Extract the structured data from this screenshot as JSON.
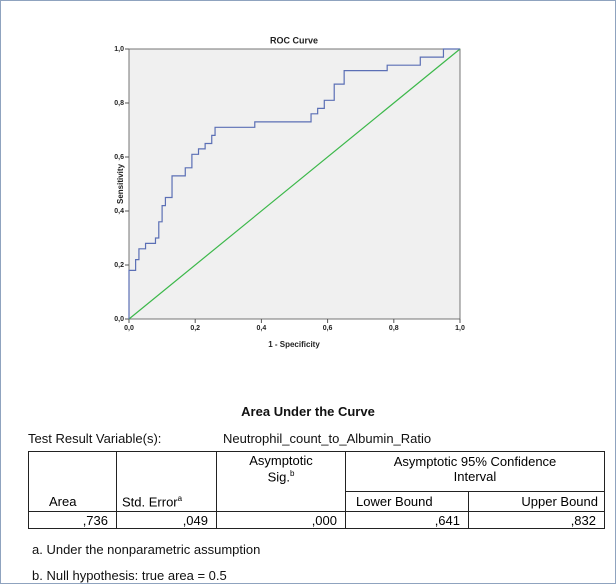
{
  "chart_data": {
    "type": "line",
    "title": "ROC Curve",
    "x_label": "1 - Specificity",
    "y_label": "Sensitivity",
    "xlim": [
      0,
      1
    ],
    "ylim": [
      0,
      1
    ],
    "xticks": [
      {
        "value": 0,
        "label": "0,0"
      },
      {
        "value": 0.2,
        "label": "0,2"
      },
      {
        "value": 0.4,
        "label": "0,4"
      },
      {
        "value": 0.6,
        "label": "0,6"
      },
      {
        "value": 0.8,
        "label": "0,8"
      },
      {
        "value": 1,
        "label": "1,0"
      }
    ],
    "yticks": [
      {
        "value": 0,
        "label": "0,0"
      },
      {
        "value": 0.2,
        "label": "0,2"
      },
      {
        "value": 0.4,
        "label": "0,4"
      },
      {
        "value": 0.6,
        "label": "0,6"
      },
      {
        "value": 0.8,
        "label": "0,8"
      },
      {
        "value": 1,
        "label": "1,0"
      }
    ],
    "grid": false,
    "background": "#f0f0f0",
    "series": [
      {
        "color": "#5b6fb5",
        "x": [
          0,
          0,
          0.02,
          0.02,
          0.03,
          0.03,
          0.05,
          0.05,
          0.08,
          0.08,
          0.09,
          0.09,
          0.1,
          0.1,
          0.11,
          0.11,
          0.13,
          0.13,
          0.17,
          0.17,
          0.19,
          0.19,
          0.21,
          0.21,
          0.23,
          0.23,
          0.25,
          0.25,
          0.26,
          0.26,
          0.38,
          0.38,
          0.55,
          0.55,
          0.57,
          0.57,
          0.59,
          0.59,
          0.62,
          0.62,
          0.65,
          0.65,
          0.78,
          0.78,
          0.88,
          0.88,
          0.95,
          0.95,
          1
        ],
        "values": [
          0,
          0.18,
          0.18,
          0.22,
          0.22,
          0.26,
          0.26,
          0.28,
          0.28,
          0.3,
          0.3,
          0.36,
          0.36,
          0.42,
          0.42,
          0.45,
          0.45,
          0.53,
          0.53,
          0.56,
          0.56,
          0.61,
          0.61,
          0.63,
          0.63,
          0.65,
          0.65,
          0.68,
          0.68,
          0.71,
          0.71,
          0.73,
          0.73,
          0.76,
          0.76,
          0.78,
          0.78,
          0.81,
          0.81,
          0.87,
          0.87,
          0.92,
          0.92,
          0.94,
          0.94,
          0.97,
          0.97,
          1,
          1
        ]
      },
      {
        "color": "#3cb84a",
        "x": [
          0,
          1
        ],
        "values": [
          0,
          1
        ]
      }
    ]
  },
  "table": {
    "title": "Area Under the Curve",
    "variable_label": "Test Result Variable(s):",
    "variable": "Neutrophil_count_to_Albumin_Ratio",
    "headers": {
      "area": "Area",
      "std_error": "Std. Error",
      "std_error_note": "a",
      "sig_line1": "Asymptotic",
      "sig_line2": "Sig.",
      "sig_note": "b",
      "ci_line1": "Asymptotic 95% Confidence",
      "ci_line2": "Interval",
      "lower": "Lower Bound",
      "upper": "Upper Bound"
    },
    "row": [
      ",736",
      ",049",
      ",000",
      ",641",
      ",832"
    ],
    "footnotes": [
      "a. Under the nonparametric assumption",
      "b. Null hypothesis: true area = 0.5"
    ]
  }
}
